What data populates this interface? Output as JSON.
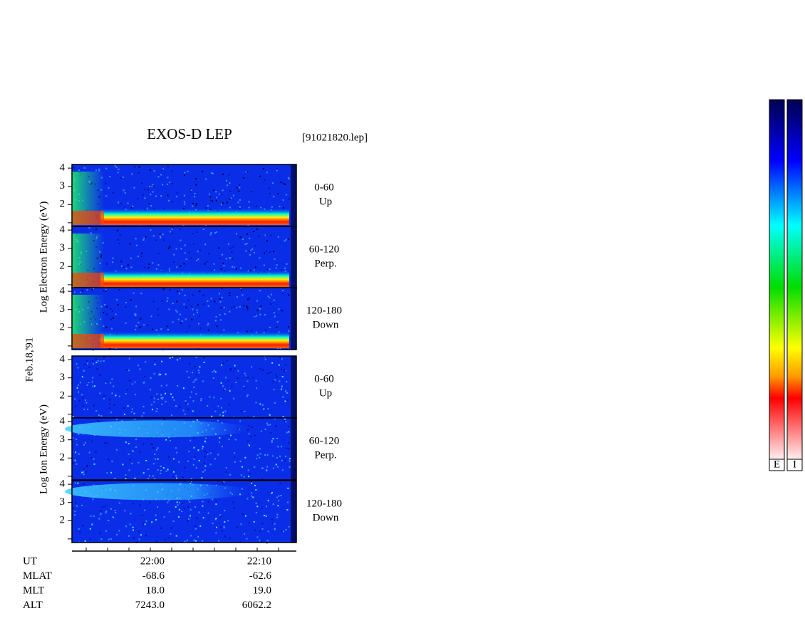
{
  "title": "EXOS-D LEP",
  "file": "[91021820.lep]",
  "date": "Feb.18,'91",
  "electron_axis_label": "Log  Electron  Energy (eV)",
  "ion_axis_label": "Log  Ion  Energy (eV)",
  "ylim": [
    0.8,
    4.2
  ],
  "yticks": [
    2,
    3,
    4
  ],
  "panels": [
    {
      "species": "electron",
      "angle": "0-60",
      "direction": "Up"
    },
    {
      "species": "electron",
      "angle": "60-120",
      "direction": "Perp."
    },
    {
      "species": "electron",
      "angle": "120-180",
      "direction": "Down"
    },
    {
      "species": "ion",
      "angle": "0-60",
      "direction": "Up"
    },
    {
      "species": "ion",
      "angle": "60-120",
      "direction": "Perp."
    },
    {
      "species": "ion",
      "angle": "120-180",
      "direction": "Down"
    }
  ],
  "time_axis": {
    "rows": [
      {
        "name": "UT",
        "values": [
          "22:00",
          "22:10"
        ]
      },
      {
        "name": "MLAT",
        "values": [
          "-68.6",
          "-62.6"
        ]
      },
      {
        "name": "MLT",
        "values": [
          "18.0",
          "19.0"
        ]
      },
      {
        "name": "ALT",
        "values": [
          "7243.0",
          "6062.2"
        ]
      }
    ]
  },
  "colorbars": [
    "E",
    "I"
  ]
}
